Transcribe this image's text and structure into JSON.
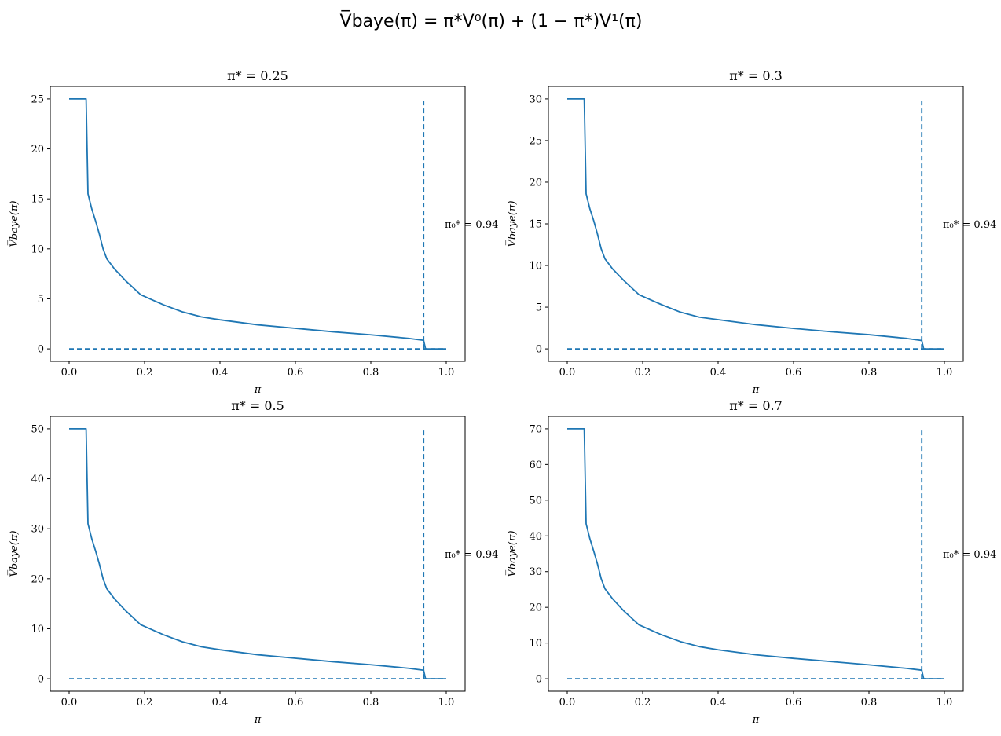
{
  "figure": {
    "suptitle": "V̅baye(π) = π*V⁰(π) + (1 − π*)V¹(π)"
  },
  "chart_data": [
    {
      "type": "line",
      "title": "π* = 0.25",
      "xlabel": "π",
      "ylabel": "V̅baye(π)",
      "xlim": [
        -0.05,
        1.05
      ],
      "ylim": [
        -1.25,
        26.25
      ],
      "xticks": [
        0.0,
        0.2,
        0.4,
        0.6,
        0.8,
        1.0
      ],
      "xtick_labels": [
        "0.0",
        "0.2",
        "0.4",
        "0.6",
        "0.8",
        "1.0"
      ],
      "yticks": [
        0,
        5,
        10,
        15,
        20,
        25
      ],
      "ytick_labels": [
        "0",
        "5",
        "10",
        "15",
        "20",
        "25"
      ],
      "grid": false,
      "color": "#1f77b4",
      "series": [
        {
          "style": "solid",
          "x": [
            0.0,
            0.045,
            0.05,
            0.06,
            0.07,
            0.08,
            0.09,
            0.1,
            0.12,
            0.15,
            0.19,
            0.25,
            0.3,
            0.35,
            0.4,
            0.5,
            0.6,
            0.7,
            0.8,
            0.9,
            0.94,
            0.945,
            1.0
          ],
          "y": [
            25,
            25,
            15.5,
            14.0,
            12.8,
            11.5,
            10.0,
            9.0,
            8.0,
            6.8,
            5.4,
            4.4,
            3.7,
            3.2,
            2.9,
            2.4,
            2.05,
            1.7,
            1.4,
            1.05,
            0.85,
            0,
            0
          ]
        },
        {
          "style": "dashed",
          "x": [
            0.0,
            1.0
          ],
          "y": [
            0,
            0
          ]
        },
        {
          "style": "dashed",
          "x": [
            0.94,
            0.94
          ],
          "y": [
            0,
            25
          ]
        }
      ],
      "annotation": {
        "text": "π₀* = 0.94",
        "x": 1.0,
        "y": 12.5
      }
    },
    {
      "type": "line",
      "title": "π* = 0.3",
      "xlabel": "π",
      "ylabel": "V̅baye(π)",
      "xlim": [
        -0.05,
        1.05
      ],
      "ylim": [
        -1.5,
        31.5
      ],
      "xticks": [
        0.0,
        0.2,
        0.4,
        0.6,
        0.8,
        1.0
      ],
      "xtick_labels": [
        "0.0",
        "0.2",
        "0.4",
        "0.6",
        "0.8",
        "1.0"
      ],
      "yticks": [
        0,
        5,
        10,
        15,
        20,
        25,
        30
      ],
      "ytick_labels": [
        "0",
        "5",
        "10",
        "15",
        "20",
        "25",
        "30"
      ],
      "grid": false,
      "color": "#1f77b4",
      "series": [
        {
          "style": "solid",
          "x": [
            0.0,
            0.045,
            0.05,
            0.06,
            0.07,
            0.08,
            0.09,
            0.1,
            0.12,
            0.15,
            0.19,
            0.25,
            0.3,
            0.35,
            0.4,
            0.5,
            0.6,
            0.7,
            0.8,
            0.9,
            0.94,
            0.945,
            1.0
          ],
          "y": [
            30,
            30,
            18.6,
            16.8,
            15.4,
            13.8,
            12.0,
            10.8,
            9.6,
            8.2,
            6.5,
            5.3,
            4.4,
            3.8,
            3.5,
            2.9,
            2.45,
            2.05,
            1.7,
            1.25,
            1.0,
            0,
            0
          ]
        },
        {
          "style": "dashed",
          "x": [
            0.0,
            1.0
          ],
          "y": [
            0,
            0
          ]
        },
        {
          "style": "dashed",
          "x": [
            0.94,
            0.94
          ],
          "y": [
            0,
            30
          ]
        }
      ],
      "annotation": {
        "text": "π₀* = 0.94",
        "x": 1.0,
        "y": 15
      }
    },
    {
      "type": "line",
      "title": "π* = 0.5",
      "xlabel": "π",
      "ylabel": "V̅baye(π)",
      "xlim": [
        -0.05,
        1.05
      ],
      "ylim": [
        -2.5,
        52.5
      ],
      "xticks": [
        0.0,
        0.2,
        0.4,
        0.6,
        0.8,
        1.0
      ],
      "xtick_labels": [
        "0.0",
        "0.2",
        "0.4",
        "0.6",
        "0.8",
        "1.0"
      ],
      "yticks": [
        0,
        10,
        20,
        30,
        40,
        50
      ],
      "ytick_labels": [
        "0",
        "10",
        "20",
        "30",
        "40",
        "50"
      ],
      "grid": false,
      "color": "#1f77b4",
      "series": [
        {
          "style": "solid",
          "x": [
            0.0,
            0.045,
            0.05,
            0.06,
            0.07,
            0.08,
            0.09,
            0.1,
            0.12,
            0.15,
            0.19,
            0.25,
            0.3,
            0.35,
            0.4,
            0.5,
            0.6,
            0.7,
            0.8,
            0.9,
            0.94,
            0.945,
            1.0
          ],
          "y": [
            50,
            50,
            31.0,
            28.0,
            25.6,
            23.0,
            20.0,
            18.0,
            16.0,
            13.6,
            10.8,
            8.8,
            7.4,
            6.4,
            5.8,
            4.8,
            4.1,
            3.4,
            2.8,
            2.1,
            1.7,
            0,
            0
          ]
        },
        {
          "style": "dashed",
          "x": [
            0.0,
            1.0
          ],
          "y": [
            0,
            0
          ]
        },
        {
          "style": "dashed",
          "x": [
            0.94,
            0.94
          ],
          "y": [
            0,
            50
          ]
        }
      ],
      "annotation": {
        "text": "π₀* = 0.94",
        "x": 1.0,
        "y": 25
      }
    },
    {
      "type": "line",
      "title": "π* = 0.7",
      "xlabel": "π",
      "ylabel": "V̅baye(π)",
      "xlim": [
        -0.05,
        1.05
      ],
      "ylim": [
        -3.5,
        73.5
      ],
      "xticks": [
        0.0,
        0.2,
        0.4,
        0.6,
        0.8,
        1.0
      ],
      "xtick_labels": [
        "0.0",
        "0.2",
        "0.4",
        "0.6",
        "0.8",
        "1.0"
      ],
      "yticks": [
        0,
        10,
        20,
        30,
        40,
        50,
        60,
        70
      ],
      "ytick_labels": [
        "0",
        "10",
        "20",
        "30",
        "40",
        "50",
        "60",
        "70"
      ],
      "grid": false,
      "color": "#1f77b4",
      "series": [
        {
          "style": "solid",
          "x": [
            0.0,
            0.045,
            0.05,
            0.06,
            0.07,
            0.08,
            0.09,
            0.1,
            0.12,
            0.15,
            0.19,
            0.25,
            0.3,
            0.35,
            0.4,
            0.5,
            0.6,
            0.7,
            0.8,
            0.9,
            0.94,
            0.945,
            1.0
          ],
          "y": [
            70,
            70,
            43.4,
            39.2,
            35.8,
            32.2,
            28.0,
            25.2,
            22.4,
            19.0,
            15.1,
            12.3,
            10.4,
            9.0,
            8.1,
            6.7,
            5.7,
            4.8,
            3.9,
            2.9,
            2.4,
            0,
            0
          ]
        },
        {
          "style": "dashed",
          "x": [
            0.0,
            1.0
          ],
          "y": [
            0,
            0
          ]
        },
        {
          "style": "dashed",
          "x": [
            0.94,
            0.94
          ],
          "y": [
            0,
            70
          ]
        }
      ],
      "annotation": {
        "text": "π₀* = 0.94",
        "x": 1.0,
        "y": 35
      }
    }
  ]
}
